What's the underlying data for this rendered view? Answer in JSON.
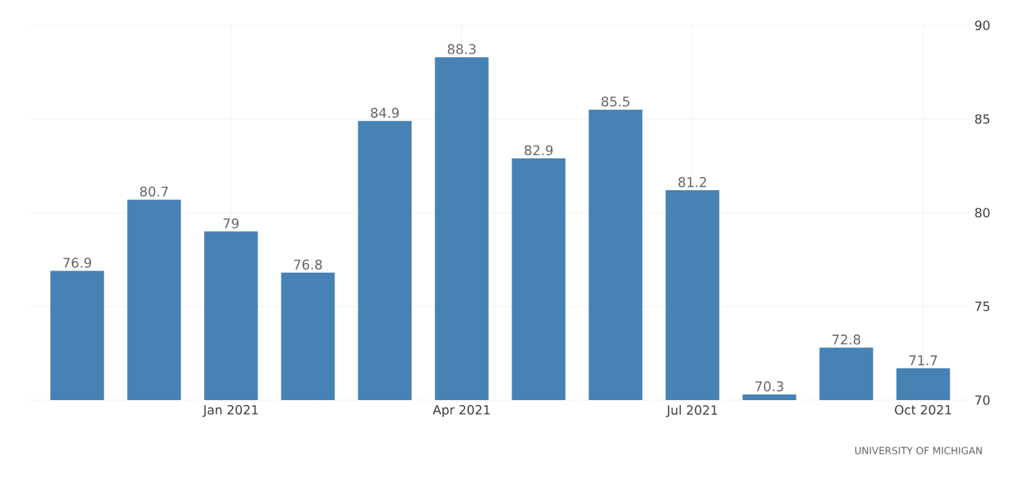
{
  "chart_data": {
    "type": "bar",
    "categories": [
      null,
      null,
      "Jan 2021",
      null,
      null,
      "Apr 2021",
      null,
      null,
      "Jul 2021",
      null,
      null,
      "Oct 2021"
    ],
    "values": [
      76.9,
      80.7,
      79,
      76.8,
      84.9,
      88.3,
      82.9,
      85.5,
      81.2,
      70.3,
      72.8,
      71.7
    ],
    "color": "#4682b4",
    "data_labels": true,
    "grid": true,
    "ylim": [
      70,
      90
    ],
    "yticks": [
      70,
      75,
      80,
      85,
      90
    ],
    "annotations": [
      "UNIVERSITY OF MICHIGAN"
    ]
  }
}
